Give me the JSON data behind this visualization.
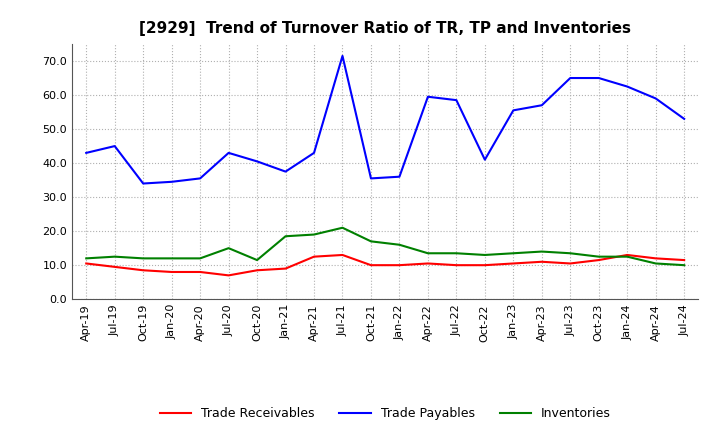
{
  "title": "[2929]  Trend of Turnover Ratio of TR, TP and Inventories",
  "xlabels": [
    "Apr-19",
    "Jul-19",
    "Oct-19",
    "Jan-20",
    "Apr-20",
    "Jul-20",
    "Oct-20",
    "Jan-21",
    "Apr-21",
    "Jul-21",
    "Oct-21",
    "Jan-22",
    "Apr-22",
    "Jul-22",
    "Oct-22",
    "Jan-23",
    "Apr-23",
    "Jul-23",
    "Oct-23",
    "Jan-24",
    "Apr-24",
    "Jul-24"
  ],
  "trade_receivables": [
    10.5,
    9.5,
    8.5,
    8.0,
    8.0,
    7.0,
    8.5,
    9.0,
    12.5,
    13.0,
    10.0,
    10.0,
    10.5,
    10.0,
    10.0,
    10.5,
    11.0,
    10.5,
    11.5,
    13.0,
    12.0,
    11.5
  ],
  "trade_payables": [
    43.0,
    45.0,
    34.0,
    34.5,
    35.5,
    43.0,
    40.5,
    37.5,
    43.0,
    71.5,
    35.5,
    36.0,
    59.5,
    58.5,
    41.0,
    55.5,
    57.0,
    65.0,
    65.0,
    62.5,
    59.0,
    53.0
  ],
  "inventories": [
    12.0,
    12.5,
    12.0,
    12.0,
    12.0,
    15.0,
    11.5,
    18.5,
    19.0,
    21.0,
    17.0,
    16.0,
    13.5,
    13.5,
    13.0,
    13.5,
    14.0,
    13.5,
    12.5,
    12.5,
    10.5,
    10.0
  ],
  "tr_color": "#ff0000",
  "tp_color": "#0000ff",
  "inv_color": "#008000",
  "ylim": [
    0.0,
    75.0
  ],
  "yticks": [
    0.0,
    10.0,
    20.0,
    30.0,
    40.0,
    50.0,
    60.0,
    70.0
  ],
  "bg_color": "#ffffff",
  "grid_color": "#b0b0b0",
  "legend_labels": [
    "Trade Receivables",
    "Trade Payables",
    "Inventories"
  ],
  "title_fontsize": 11,
  "tick_fontsize": 8,
  "legend_fontsize": 9
}
